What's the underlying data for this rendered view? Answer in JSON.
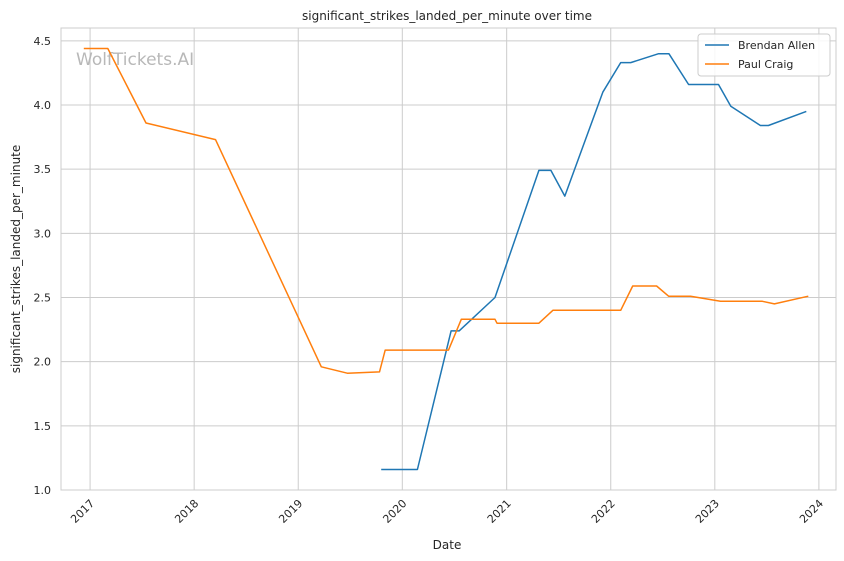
{
  "chart_data": {
    "type": "line",
    "title": "significant_strikes_landed_per_minute over time",
    "xlabel": "Date",
    "ylabel": "significant_strikes_landed_per_minute",
    "watermark": "WolfTickets.AI",
    "xlim": [
      "2016-09-21",
      "2024-03-01"
    ],
    "ylim": [
      1.0,
      4.6
    ],
    "x_ticks": [
      "2017",
      "2018",
      "2019",
      "2020",
      "2021",
      "2022",
      "2023",
      "2024"
    ],
    "y_ticks": [
      "1.0",
      "1.5",
      "2.0",
      "2.5",
      "3.0",
      "3.5",
      "4.0",
      "4.5"
    ],
    "grid": true,
    "legend_position": "top-right",
    "series": [
      {
        "name": "Brendan Allen",
        "color": "#1f77b4",
        "points": [
          [
            "2019-10-19",
            1.16
          ],
          [
            "2020-02-23",
            1.16
          ],
          [
            "2020-06-20",
            2.24
          ],
          [
            "2020-07-18",
            2.24
          ],
          [
            "2020-11-21",
            2.5
          ],
          [
            "2021-04-24",
            3.49
          ],
          [
            "2021-06-05",
            3.49
          ],
          [
            "2021-07-24",
            3.29
          ],
          [
            "2021-12-04",
            4.1
          ],
          [
            "2022-02-05",
            4.33
          ],
          [
            "2022-03-12",
            4.33
          ],
          [
            "2022-06-18",
            4.4
          ],
          [
            "2022-07-24",
            4.4
          ],
          [
            "2022-10-01",
            4.16
          ],
          [
            "2023-01-14",
            4.16
          ],
          [
            "2023-02-26",
            3.99
          ],
          [
            "2023-06-10",
            3.84
          ],
          [
            "2023-07-08",
            3.84
          ],
          [
            "2023-11-18",
            3.95
          ]
        ]
      },
      {
        "name": "Paul Craig",
        "color": "#ff7f0e",
        "points": [
          [
            "2016-12-10",
            4.44
          ],
          [
            "2017-03-04",
            4.44
          ],
          [
            "2017-07-16",
            3.86
          ],
          [
            "2018-03-17",
            3.73
          ],
          [
            "2019-03-23",
            1.96
          ],
          [
            "2019-06-22",
            1.91
          ],
          [
            "2019-10-13",
            1.92
          ],
          [
            "2019-11-02",
            2.09
          ],
          [
            "2020-06-11",
            2.09
          ],
          [
            "2020-07-26",
            2.33
          ],
          [
            "2020-11-21",
            2.33
          ],
          [
            "2020-11-28",
            2.3
          ],
          [
            "2021-04-24",
            2.3
          ],
          [
            "2021-06-12",
            2.4
          ],
          [
            "2022-02-05",
            2.4
          ],
          [
            "2022-03-19",
            2.59
          ],
          [
            "2022-06-11",
            2.59
          ],
          [
            "2022-07-23",
            2.51
          ],
          [
            "2022-10-08",
            2.51
          ],
          [
            "2023-01-21",
            2.47
          ],
          [
            "2023-06-17",
            2.47
          ],
          [
            "2023-07-29",
            2.45
          ],
          [
            "2023-11-25",
            2.51
          ]
        ]
      }
    ]
  }
}
